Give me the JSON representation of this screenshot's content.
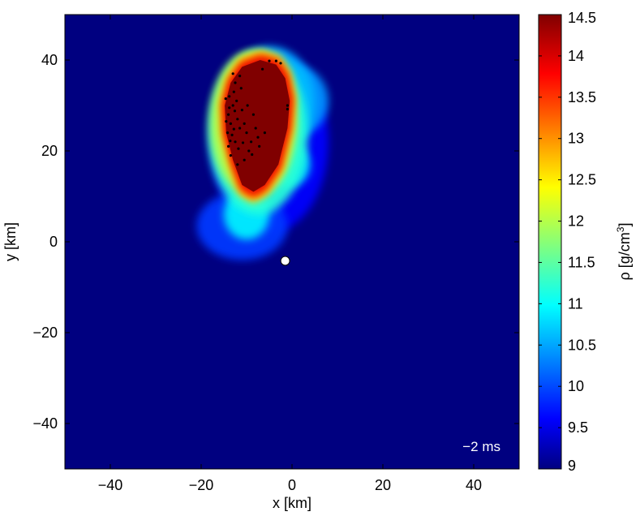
{
  "chart_data": {
    "type": "heatmap",
    "title": "",
    "xlabel": "x [km]",
    "ylabel": "y [km]",
    "xlim": [
      -50,
      50
    ],
    "ylim": [
      -50,
      50
    ],
    "x_ticks": [
      -40,
      -20,
      0,
      20,
      40
    ],
    "y_ticks": [
      -40,
      -20,
      0,
      20,
      40
    ],
    "x_tick_labels": [
      "−40",
      "−20",
      "0",
      "20",
      "40"
    ],
    "y_tick_labels": [
      "−40",
      "−20",
      "0",
      "20",
      "40"
    ],
    "colorbar": {
      "label_prefix": "ρ [g/cm",
      "label_superscript": "3",
      "label_suffix": "]",
      "range": [
        9,
        14.5
      ],
      "ticks": [
        9,
        9.5,
        10,
        10.5,
        11,
        11.5,
        12,
        12.5,
        13,
        13.5,
        14,
        14.5
      ],
      "tick_labels": [
        "9",
        "9.5",
        "10",
        "10.5",
        "11",
        "11.5",
        "12",
        "12.5",
        "13",
        "13.5",
        "14",
        "14.5"
      ],
      "colormap": "jet",
      "colors": [
        "#000080",
        "#0000ff",
        "#00ffff",
        "#ffff00",
        "#ff0000",
        "#800000"
      ]
    },
    "grid": false,
    "annotation": "−2 ms",
    "annotation_position": "bottom-right",
    "marker": {
      "x": -1.5,
      "y": -4.2,
      "fill": "#ffffff"
    },
    "background_level": 9.0,
    "dense_core": {
      "level": 14.5,
      "center": {
        "x": -8.5,
        "y": 26.5
      },
      "outline": [
        [
          -3.5,
          39
        ],
        [
          -1.5,
          36
        ],
        [
          -0.5,
          31
        ],
        [
          -1,
          25
        ],
        [
          -3,
          17
        ],
        [
          -6,
          12.5
        ],
        [
          -8.5,
          11
        ],
        [
          -11,
          12.5
        ],
        [
          -13,
          18
        ],
        [
          -14.5,
          24
        ],
        [
          -14.8,
          30
        ],
        [
          -13.5,
          35
        ],
        [
          -11,
          38.5
        ],
        [
          -7,
          40
        ]
      ]
    },
    "halo_blobs": [
      {
        "x": -8.5,
        "y": 26,
        "rx": 9.5,
        "ry": 16,
        "level": 12.0
      },
      {
        "x": -7.5,
        "y": 24,
        "rx": 11,
        "ry": 18,
        "level": 11.2
      },
      {
        "x": -5,
        "y": 31,
        "rx": 10,
        "ry": 12,
        "level": 10.6
      },
      {
        "x": 0,
        "y": 31,
        "rx": 8,
        "ry": 8,
        "level": 10.4
      },
      {
        "x": -1,
        "y": 17,
        "rx": 5,
        "ry": 5,
        "level": 10.8
      },
      {
        "x": -10,
        "y": 6,
        "rx": 5,
        "ry": 5.5,
        "level": 10.9
      },
      {
        "x": -11,
        "y": 3.5,
        "rx": 10,
        "ry": 7.5,
        "level": 9.9
      },
      {
        "x": -5,
        "y": 22,
        "rx": 13,
        "ry": 20,
        "level": 9.6
      }
    ],
    "tracer_particles": [
      [
        -14,
        28
      ],
      [
        -13.5,
        26
      ],
      [
        -14.2,
        24
      ],
      [
        -13,
        30
      ],
      [
        -12.5,
        22
      ],
      [
        -13.8,
        32
      ],
      [
        -12,
        27
      ],
      [
        -11.5,
        25
      ],
      [
        -14,
        21
      ],
      [
        -12.8,
        33
      ],
      [
        -11,
        29
      ],
      [
        -13.2,
        23.5
      ],
      [
        -10.5,
        26
      ],
      [
        -12.2,
        31
      ],
      [
        -13.5,
        19
      ],
      [
        -11.8,
        20.5
      ],
      [
        -10,
        24
      ],
      [
        -9,
        22
      ],
      [
        -8,
        25
      ],
      [
        -9.5,
        20
      ],
      [
        -12.5,
        35
      ],
      [
        -11.5,
        36.5
      ],
      [
        -10.5,
        18
      ],
      [
        -7.5,
        23
      ],
      [
        -6,
        24
      ],
      [
        -9.8,
        30
      ],
      [
        -8.5,
        28
      ],
      [
        -12,
        17
      ],
      [
        -14.5,
        26.5
      ],
      [
        -13.8,
        29.5
      ],
      [
        -12.8,
        24.8
      ],
      [
        -11.2,
        33.8
      ],
      [
        -10.8,
        21.8
      ],
      [
        -8.8,
        19.2
      ],
      [
        -7.2,
        21
      ],
      [
        -6.5,
        38
      ],
      [
        -5,
        39.8
      ],
      [
        -3.5,
        39.8
      ],
      [
        -2.5,
        39.3
      ],
      [
        -1,
        30
      ],
      [
        -1,
        29.2
      ],
      [
        -13,
        37
      ],
      [
        -14.6,
        31.5
      ],
      [
        -12.6,
        28.8
      ],
      [
        -13.6,
        22.2
      ]
    ]
  }
}
